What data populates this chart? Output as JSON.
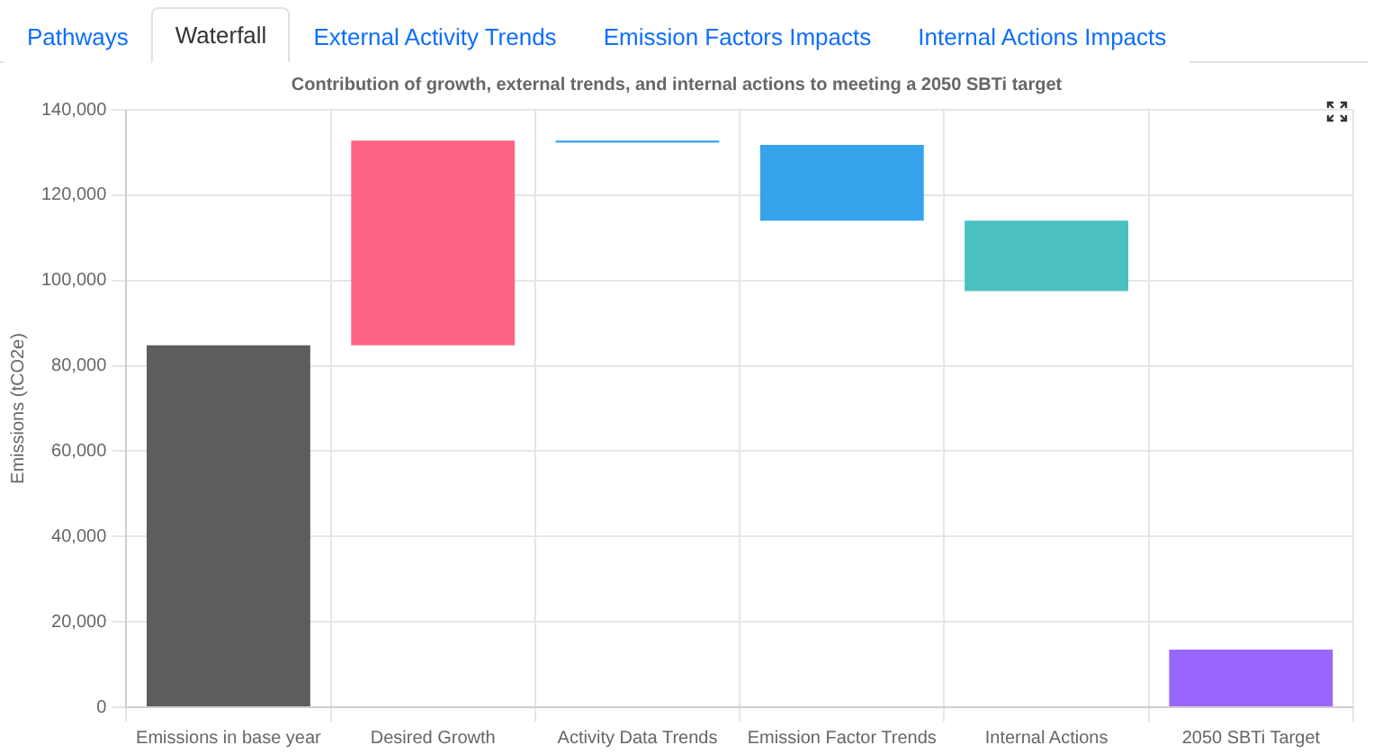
{
  "chart_data": {
    "type": "bar",
    "title": "Contribution of growth, external trends, and internal actions to meeting a 2050 SBTi target",
    "ylabel": "Emissions (tCO2e)",
    "categories": [
      "Emissions in base year",
      "Desired Growth",
      "Activity Data Trends",
      "Emission Factor Trends",
      "Internal Actions",
      "2050 SBTi Target"
    ],
    "values": [
      84800,
      48000,
      -500,
      -17800,
      -16500,
      13500
    ],
    "base": [
      0,
      84800,
      132800,
      131800,
      114000,
      0
    ],
    "colors": [
      "#5d5d5d",
      "#ff6384",
      "#36a2eb",
      "#36a2eb",
      "#4bc0c0",
      "#9966ff"
    ],
    "ylim": [
      0,
      140000
    ],
    "yticks": [
      {
        "value": 0,
        "label": "0"
      },
      {
        "value": 20000,
        "label": "20,000"
      },
      {
        "value": 40000,
        "label": "40,000"
      },
      {
        "value": 60000,
        "label": "60,000"
      },
      {
        "value": 80000,
        "label": "80,000"
      },
      {
        "value": 100000,
        "label": "100,000"
      },
      {
        "value": 120000,
        "label": "120,000"
      },
      {
        "value": 140000,
        "label": "140,000"
      }
    ],
    "grid": true,
    "legend": false,
    "annotations": [
      "Pathways",
      "Waterfall",
      "External Activity Trends",
      "Emission Factors Impacts",
      "Internal Actions Impacts"
    ]
  }
}
